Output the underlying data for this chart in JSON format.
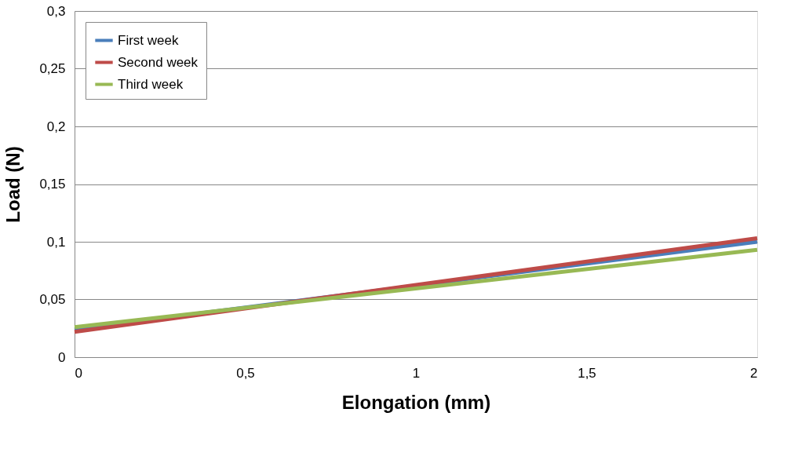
{
  "chart_data": {
    "type": "line",
    "xlabel": "Elongation (mm)",
    "ylabel": "Load (N)",
    "x": [
      0,
      2
    ],
    "series": [
      {
        "name": "First week",
        "color": "#4a7ebb",
        "values": [
          0.024,
          0.1
        ]
      },
      {
        "name": "Second week",
        "color": "#be4b48",
        "values": [
          0.022,
          0.103
        ]
      },
      {
        "name": "Third week",
        "color": "#98b954",
        "values": [
          0.026,
          0.093
        ]
      }
    ],
    "xlim": [
      0,
      2
    ],
    "xticks": [
      0,
      {
        "value": 0.5,
        "label": "0,5"
      },
      1,
      {
        "value": 1.5,
        "label": "1,5"
      },
      2
    ],
    "ylim": [
      0,
      0.3
    ],
    "yticks": [
      0,
      {
        "value": 0.05,
        "label": "0,05"
      },
      {
        "value": 0.1,
        "label": "0,1"
      },
      {
        "value": 0.15,
        "label": "0,15"
      },
      {
        "value": 0.2,
        "label": "0,2"
      },
      {
        "value": 0.25,
        "label": "0,25"
      },
      {
        "value": 0.3,
        "label": "0,3"
      }
    ],
    "grid": "y",
    "legend": "top left",
    "marker": "none",
    "line_style": "solid"
  }
}
